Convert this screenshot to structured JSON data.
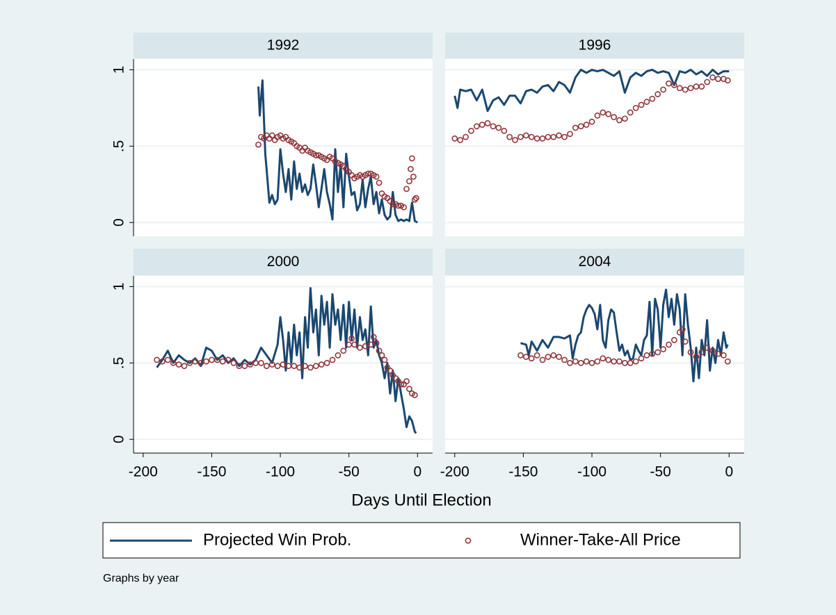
{
  "chart_data": [
    {
      "type": "line",
      "title": "1992",
      "xlim": [
        -207,
        11
      ],
      "ylim": [
        -0.09,
        1.07
      ],
      "yticks": [
        0,
        {
          "value": 0.5,
          "label": ".5"
        },
        1
      ],
      "grid": true,
      "series": [
        {
          "name": "Projected Win Prob.",
          "mark": "line",
          "color": "#1a476f",
          "x": [
            -116,
            -115,
            -113,
            -111,
            -110,
            -108,
            -106,
            -104,
            -102,
            -100,
            -98,
            -96,
            -94,
            -92,
            -90,
            -88,
            -86,
            -84,
            -82,
            -80,
            -78,
            -76,
            -74,
            -72,
            -70,
            -68,
            -66,
            -64,
            -62,
            -60,
            -58,
            -56,
            -54,
            -52,
            -50,
            -48,
            -46,
            -44,
            -42,
            -40,
            -38,
            -36,
            -34,
            -32,
            -30,
            -28,
            -26,
            -24,
            -22,
            -20,
            -18,
            -16,
            -14,
            -12,
            -10,
            -8,
            -6,
            -4,
            -2,
            0
          ],
          "values": [
            0.89,
            0.7,
            0.93,
            0.45,
            0.35,
            0.13,
            0.18,
            0.12,
            0.15,
            0.48,
            0.32,
            0.2,
            0.35,
            0.15,
            0.4,
            0.22,
            0.32,
            0.2,
            0.25,
            0.18,
            0.22,
            0.38,
            0.25,
            0.1,
            0.22,
            0.35,
            0.2,
            0.12,
            0.02,
            0.48,
            0.2,
            0.38,
            0.1,
            0.45,
            0.3,
            0.18,
            0.2,
            0.08,
            0.12,
            0.28,
            0.1,
            0.22,
            0.3,
            0.12,
            0.2,
            0.06,
            0.15,
            0.05,
            0.02,
            0.04,
            0.2,
            0.05,
            0.01,
            0.02,
            0.01,
            0.02,
            0.01,
            0.13,
            0.01,
            0.0
          ]
        },
        {
          "name": "Winner-Take-All Price",
          "mark": "circle",
          "color": "#90353b",
          "x": [
            -116,
            -114,
            -112,
            -110,
            -108,
            -106,
            -104,
            -102,
            -100,
            -98,
            -96,
            -94,
            -92,
            -90,
            -88,
            -86,
            -84,
            -82,
            -80,
            -78,
            -76,
            -74,
            -72,
            -70,
            -68,
            -66,
            -64,
            -62,
            -60,
            -58,
            -56,
            -54,
            -52,
            -50,
            -48,
            -46,
            -44,
            -42,
            -40,
            -38,
            -36,
            -34,
            -32,
            -30,
            -28,
            -26,
            -24,
            -22,
            -20,
            -18,
            -16,
            -14,
            -12,
            -10,
            -8,
            -6,
            -5,
            -4,
            -3,
            -2,
            -1
          ],
          "values": [
            0.51,
            0.56,
            0.55,
            0.57,
            0.55,
            0.57,
            0.54,
            0.56,
            0.57,
            0.55,
            0.56,
            0.54,
            0.53,
            0.52,
            0.5,
            0.49,
            0.47,
            0.49,
            0.47,
            0.46,
            0.45,
            0.44,
            0.44,
            0.43,
            0.42,
            0.41,
            0.43,
            0.42,
            0.4,
            0.39,
            0.38,
            0.37,
            0.35,
            0.33,
            0.31,
            0.29,
            0.3,
            0.31,
            0.3,
            0.31,
            0.32,
            0.32,
            0.31,
            0.3,
            0.26,
            0.19,
            0.17,
            0.16,
            0.14,
            0.12,
            0.12,
            0.11,
            0.11,
            0.1,
            0.22,
            0.27,
            0.35,
            0.42,
            0.3,
            0.15,
            0.16
          ]
        }
      ]
    },
    {
      "type": "line",
      "title": "1996",
      "xlim": [
        -207,
        11
      ],
      "ylim": [
        -0.09,
        1.07
      ],
      "grid": true,
      "series": [
        {
          "mark": "line",
          "color": "#1a476f",
          "x": [
            -200,
            -198,
            -196,
            -192,
            -188,
            -184,
            -180,
            -176,
            -172,
            -168,
            -164,
            -160,
            -156,
            -152,
            -148,
            -144,
            -140,
            -136,
            -132,
            -128,
            -124,
            -120,
            -116,
            -112,
            -108,
            -104,
            -100,
            -96,
            -92,
            -88,
            -84,
            -80,
            -76,
            -72,
            -68,
            -64,
            -60,
            -56,
            -52,
            -48,
            -44,
            -40,
            -36,
            -32,
            -28,
            -24,
            -20,
            -16,
            -12,
            -8,
            -4,
            0
          ],
          "values": [
            0.83,
            0.75,
            0.87,
            0.86,
            0.87,
            0.8,
            0.87,
            0.73,
            0.8,
            0.82,
            0.77,
            0.83,
            0.83,
            0.78,
            0.86,
            0.87,
            0.85,
            0.89,
            0.9,
            0.86,
            0.92,
            0.9,
            0.85,
            0.95,
            1.0,
            0.98,
            1.0,
            0.99,
            1.0,
            0.98,
            0.96,
            0.99,
            0.85,
            0.95,
            0.98,
            0.96,
            0.99,
            1.0,
            0.98,
            0.99,
            0.98,
            0.9,
            0.99,
            0.98,
            1.0,
            0.97,
            0.99,
            0.96,
            1.0,
            0.97,
            0.99,
            0.99
          ]
        },
        {
          "mark": "circle",
          "color": "#90353b",
          "x": [
            -200,
            -196,
            -192,
            -188,
            -184,
            -180,
            -176,
            -172,
            -168,
            -164,
            -160,
            -156,
            -152,
            -148,
            -144,
            -140,
            -136,
            -132,
            -128,
            -124,
            -120,
            -116,
            -112,
            -108,
            -104,
            -100,
            -96,
            -92,
            -88,
            -84,
            -80,
            -76,
            -72,
            -68,
            -64,
            -60,
            -56,
            -52,
            -48,
            -44,
            -40,
            -36,
            -32,
            -28,
            -24,
            -20,
            -16,
            -12,
            -8,
            -4,
            -1
          ],
          "values": [
            0.55,
            0.54,
            0.56,
            0.6,
            0.63,
            0.64,
            0.65,
            0.63,
            0.62,
            0.6,
            0.56,
            0.54,
            0.56,
            0.57,
            0.56,
            0.55,
            0.55,
            0.56,
            0.56,
            0.57,
            0.56,
            0.58,
            0.62,
            0.63,
            0.64,
            0.66,
            0.7,
            0.72,
            0.71,
            0.69,
            0.67,
            0.68,
            0.72,
            0.75,
            0.77,
            0.79,
            0.81,
            0.84,
            0.87,
            0.91,
            0.9,
            0.88,
            0.87,
            0.88,
            0.89,
            0.89,
            0.92,
            0.95,
            0.94,
            0.94,
            0.93
          ]
        }
      ]
    },
    {
      "type": "line",
      "title": "2000",
      "xlim": [
        -207,
        11
      ],
      "ylim": [
        -0.09,
        1.07
      ],
      "yticks": [
        0,
        {
          "value": 0.5,
          "label": ".5"
        },
        1
      ],
      "xticks": [
        -200,
        -150,
        -100,
        -50,
        0
      ],
      "grid": true,
      "series": [
        {
          "mark": "line",
          "color": "#1a476f",
          "x": [
            -190,
            -186,
            -182,
            -178,
            -174,
            -170,
            -166,
            -162,
            -158,
            -154,
            -150,
            -146,
            -142,
            -138,
            -134,
            -130,
            -126,
            -122,
            -118,
            -114,
            -110,
            -106,
            -102,
            -100,
            -98,
            -96,
            -94,
            -92,
            -90,
            -88,
            -86,
            -84,
            -82,
            -80,
            -78,
            -76,
            -74,
            -72,
            -70,
            -68,
            -66,
            -64,
            -62,
            -60,
            -58,
            -56,
            -54,
            -52,
            -50,
            -48,
            -46,
            -44,
            -42,
            -40,
            -38,
            -36,
            -34,
            -32,
            -30,
            -28,
            -26,
            -24,
            -22,
            -20,
            -18,
            -16,
            -14,
            -12,
            -10,
            -8,
            -6,
            -4,
            -2,
            -1
          ],
          "values": [
            0.47,
            0.52,
            0.58,
            0.5,
            0.55,
            0.52,
            0.5,
            0.53,
            0.48,
            0.6,
            0.58,
            0.52,
            0.55,
            0.5,
            0.53,
            0.48,
            0.52,
            0.49,
            0.52,
            0.6,
            0.55,
            0.5,
            0.62,
            0.8,
            0.65,
            0.45,
            0.7,
            0.5,
            0.75,
            0.55,
            0.7,
            0.4,
            0.8,
            0.6,
            0.99,
            0.7,
            0.85,
            0.55,
            0.94,
            0.75,
            0.9,
            0.6,
            0.95,
            0.75,
            0.85,
            0.65,
            0.88,
            0.6,
            0.9,
            0.65,
            0.85,
            0.6,
            0.8,
            0.65,
            0.72,
            0.55,
            0.87,
            0.6,
            0.65,
            0.55,
            0.5,
            0.4,
            0.5,
            0.3,
            0.45,
            0.25,
            0.4,
            0.3,
            0.2,
            0.08,
            0.15,
            0.12,
            0.05,
            0.04
          ]
        },
        {
          "mark": "circle",
          "color": "#90353b",
          "x": [
            -190,
            -186,
            -182,
            -178,
            -174,
            -170,
            -166,
            -162,
            -158,
            -154,
            -150,
            -146,
            -142,
            -138,
            -134,
            -130,
            -126,
            -122,
            -118,
            -114,
            -110,
            -106,
            -102,
            -98,
            -94,
            -90,
            -86,
            -82,
            -78,
            -74,
            -70,
            -66,
            -62,
            -58,
            -54,
            -50,
            -48,
            -46,
            -42,
            -38,
            -34,
            -32,
            -30,
            -28,
            -26,
            -24,
            -22,
            -20,
            -18,
            -16,
            -14,
            -12,
            -10,
            -8,
            -6,
            -4,
            -2
          ],
          "values": [
            0.52,
            0.51,
            0.52,
            0.5,
            0.49,
            0.48,
            0.5,
            0.51,
            0.5,
            0.51,
            0.52,
            0.52,
            0.51,
            0.52,
            0.5,
            0.48,
            0.48,
            0.49,
            0.5,
            0.5,
            0.48,
            0.49,
            0.48,
            0.49,
            0.48,
            0.48,
            0.47,
            0.48,
            0.47,
            0.48,
            0.49,
            0.5,
            0.52,
            0.55,
            0.58,
            0.62,
            0.66,
            0.62,
            0.6,
            0.61,
            0.62,
            0.67,
            0.63,
            0.58,
            0.55,
            0.52,
            0.47,
            0.45,
            0.42,
            0.4,
            0.38,
            0.36,
            0.36,
            0.38,
            0.33,
            0.3,
            0.29
          ]
        }
      ]
    },
    {
      "type": "line",
      "title": "2004",
      "xlim": [
        -207,
        11
      ],
      "ylim": [
        -0.09,
        1.07
      ],
      "xticks": [
        -200,
        -150,
        -100,
        -50,
        0
      ],
      "grid": true,
      "series": [
        {
          "mark": "line",
          "color": "#1a476f",
          "x": [
            -152,
            -148,
            -146,
            -144,
            -140,
            -136,
            -132,
            -128,
            -124,
            -120,
            -116,
            -114,
            -112,
            -110,
            -108,
            -106,
            -104,
            -102,
            -100,
            -98,
            -96,
            -94,
            -92,
            -90,
            -88,
            -86,
            -84,
            -82,
            -80,
            -78,
            -76,
            -74,
            -72,
            -70,
            -68,
            -66,
            -64,
            -62,
            -60,
            -58,
            -56,
            -54,
            -52,
            -50,
            -48,
            -46,
            -44,
            -42,
            -40,
            -38,
            -36,
            -34,
            -32,
            -30,
            -28,
            -26,
            -24,
            -22,
            -20,
            -18,
            -16,
            -14,
            -12,
            -10,
            -8,
            -6,
            -4,
            -2,
            -1
          ],
          "values": [
            0.63,
            0.62,
            0.55,
            0.64,
            0.58,
            0.65,
            0.6,
            0.67,
            0.67,
            0.66,
            0.68,
            0.53,
            0.62,
            0.68,
            0.7,
            0.8,
            0.85,
            0.88,
            0.86,
            0.82,
            0.72,
            0.88,
            0.65,
            0.6,
            0.78,
            0.85,
            0.83,
            0.7,
            0.58,
            0.62,
            0.55,
            0.58,
            0.52,
            0.53,
            0.62,
            0.58,
            0.55,
            0.65,
            0.68,
            0.9,
            0.55,
            0.92,
            0.85,
            0.6,
            0.88,
            0.98,
            0.8,
            0.92,
            0.75,
            0.95,
            0.85,
            0.55,
            0.95,
            0.75,
            0.6,
            0.38,
            0.6,
            0.4,
            0.65,
            0.55,
            0.78,
            0.45,
            0.6,
            0.5,
            0.65,
            0.55,
            0.7,
            0.6,
            0.62
          ]
        },
        {
          "mark": "circle",
          "color": "#90353b",
          "x": [
            -152,
            -148,
            -144,
            -140,
            -136,
            -132,
            -128,
            -124,
            -120,
            -116,
            -112,
            -108,
            -104,
            -100,
            -96,
            -92,
            -88,
            -84,
            -80,
            -76,
            -72,
            -68,
            -64,
            -60,
            -56,
            -52,
            -48,
            -44,
            -40,
            -36,
            -34,
            -32,
            -28,
            -24,
            -20,
            -16,
            -12,
            -8,
            -4,
            -1
          ],
          "values": [
            0.55,
            0.54,
            0.53,
            0.55,
            0.52,
            0.54,
            0.55,
            0.54,
            0.52,
            0.5,
            0.51,
            0.5,
            0.51,
            0.5,
            0.51,
            0.53,
            0.52,
            0.51,
            0.51,
            0.5,
            0.5,
            0.51,
            0.53,
            0.55,
            0.56,
            0.57,
            0.59,
            0.62,
            0.65,
            0.7,
            0.72,
            0.64,
            0.57,
            0.54,
            0.57,
            0.6,
            0.58,
            0.56,
            0.55,
            0.51
          ]
        }
      ]
    }
  ],
  "xlabel": "Days Until Election",
  "note": "Graphs by year"
}
